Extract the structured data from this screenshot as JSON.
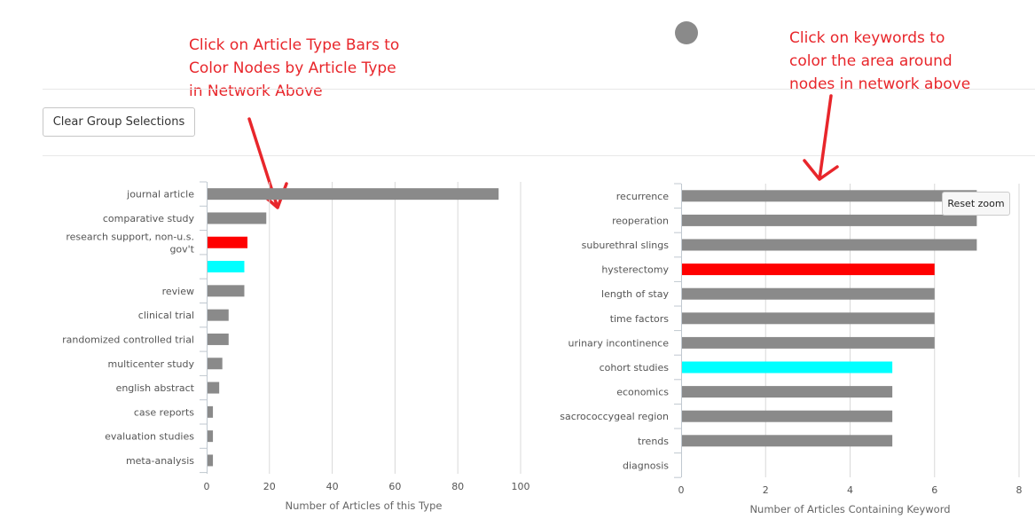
{
  "annotations": {
    "left": "Click on Article Type Bars to\nColor Nodes by Article Type\nin Network Above",
    "right": "Click on keywords to\ncolor the area around\nnodes in network above"
  },
  "toolbar": {
    "clear_label": "Clear Group Selections"
  },
  "reset_zoom_label": "Reset zoom",
  "colors": {
    "default": "#8a8a8a",
    "red": "#ff0000",
    "cyan": "#00ffff",
    "annotation": "#e8262b"
  },
  "chart_data": [
    {
      "type": "bar",
      "orientation": "horizontal",
      "categories": [
        "journal article",
        "comparative study",
        "research support, non-u.s. gov't",
        "",
        "review",
        "clinical trial",
        "randomized controlled trial",
        "multicenter study",
        "english abstract",
        "case reports",
        "evaluation studies",
        "meta-analysis"
      ],
      "values": [
        93,
        19,
        13,
        12,
        12,
        7,
        7,
        5,
        4,
        2,
        2,
        2
      ],
      "bar_colors": [
        "#8a8a8a",
        "#8a8a8a",
        "#ff0000",
        "#00ffff",
        "#8a8a8a",
        "#8a8a8a",
        "#8a8a8a",
        "#8a8a8a",
        "#8a8a8a",
        "#8a8a8a",
        "#8a8a8a",
        "#8a8a8a"
      ],
      "xlabel": "Number of Articles of this Type",
      "xlim": [
        0,
        100
      ],
      "ticks": [
        0,
        20,
        40,
        60,
        80,
        100
      ],
      "grid": true
    },
    {
      "type": "bar",
      "orientation": "horizontal",
      "categories": [
        "recurrence",
        "reoperation",
        "suburethral slings",
        "hysterectomy",
        "length of stay",
        "time factors",
        "urinary incontinence",
        "cohort studies",
        "economics",
        "sacrococcygeal region",
        "trends",
        "diagnosis"
      ],
      "values": [
        7,
        7,
        7,
        6,
        6,
        6,
        6,
        5,
        5,
        5,
        5,
        0
      ],
      "bar_colors": [
        "#8a8a8a",
        "#8a8a8a",
        "#8a8a8a",
        "#ff0000",
        "#8a8a8a",
        "#8a8a8a",
        "#8a8a8a",
        "#00ffff",
        "#8a8a8a",
        "#8a8a8a",
        "#8a8a8a",
        "#8a8a8a"
      ],
      "xlabel": "Number of Articles Containing Keyword",
      "xlim": [
        0,
        8
      ],
      "ticks": [
        0,
        2,
        4,
        6,
        8
      ],
      "grid": true
    }
  ]
}
